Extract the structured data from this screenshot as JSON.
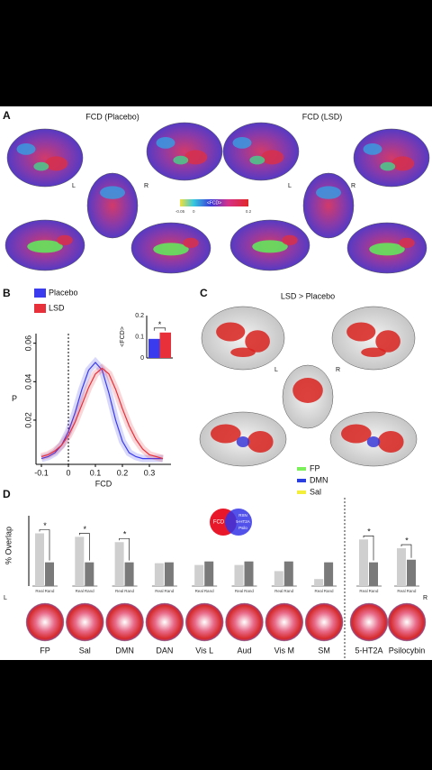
{
  "panel_a": {
    "label": "A",
    "title_left": "FCD (Placebo)",
    "title_right": "FCD (LSD)",
    "hemisphere_labels": [
      "L",
      "R",
      "L",
      "R"
    ],
    "colorbar": {
      "label": "<FCD>",
      "lim": [
        -0.05,
        0.2
      ],
      "ticks": [
        -0.05,
        0,
        0.2
      ]
    }
  },
  "panel_b": {
    "label": "B"
  },
  "panel_c": {
    "label": "C",
    "title": "LSD > Placebo",
    "hemisphere_labels": [
      "L",
      "R"
    ],
    "legend": [
      {
        "name": "FP",
        "color": "#7cf05a"
      },
      {
        "name": "DMN",
        "color": "#2b3fe0"
      },
      {
        "name": "Sal",
        "color": "#f2ee3a"
      }
    ]
  },
  "panel_d": {
    "label": "D",
    "venn": {
      "left": "FCD",
      "right": [
        "RSN",
        "5-HT2A",
        "Psilo"
      ]
    },
    "hemisphere_labels": [
      "L",
      "R"
    ]
  },
  "chart_data": [
    {
      "type": "line",
      "x_label": "FCD",
      "y_label": "P",
      "x": [
        -0.1,
        -0.075,
        -0.05,
        -0.025,
        0,
        0.025,
        0.05,
        0.075,
        0.1,
        0.125,
        0.15,
        0.175,
        0.2,
        0.225,
        0.25,
        0.275,
        0.3,
        0.325,
        0.35
      ],
      "series": [
        {
          "name": "Placebo",
          "color": "#3a3aef",
          "values": [
            0,
            0.001,
            0.003,
            0.007,
            0.014,
            0.024,
            0.036,
            0.046,
            0.05,
            0.046,
            0.034,
            0.02,
            0.009,
            0.003,
            0.001,
            0,
            0,
            0,
            0
          ]
        },
        {
          "name": "LSD",
          "color": "#e8303a",
          "values": [
            0.001,
            0.002,
            0.004,
            0.007,
            0.012,
            0.019,
            0.028,
            0.037,
            0.044,
            0.047,
            0.044,
            0.036,
            0.026,
            0.017,
            0.01,
            0.005,
            0.002,
            0.001,
            0
          ]
        }
      ],
      "xlim": [
        -0.12,
        0.38
      ],
      "xticks": [
        -0.1,
        0,
        0.1,
        0.2,
        0.3
      ],
      "ylim": [
        -0.003,
        0.065
      ],
      "yticks": [
        0.02,
        0.04,
        0.06
      ]
    },
    {
      "type": "bar",
      "y_label": "<FCD>",
      "categories": [
        "Placebo",
        "LSD"
      ],
      "values": [
        0.09,
        0.12
      ],
      "colors": [
        "#3a3aef",
        "#e8303a"
      ],
      "ylim": [
        0,
        0.2
      ],
      "yticks": [
        0,
        0.1,
        0.2
      ],
      "annotation": "*"
    },
    {
      "type": "bar",
      "y_label": "% Overlap",
      "categories": [
        "FP",
        "Sal",
        "DMN",
        "DAN",
        "Vis L",
        "Aud",
        "Vis M",
        "SM",
        "5-HT2A",
        "Psilocybin"
      ],
      "series": [
        {
          "name": "Real",
          "color": "#cfcfcf",
          "values": [
            60,
            56,
            50,
            26,
            24,
            24,
            17,
            8,
            53,
            43
          ]
        },
        {
          "name": "Rand",
          "color": "#7a7a7a",
          "values": [
            27,
            27,
            27,
            27,
            28,
            28,
            28,
            27,
            27,
            30
          ]
        }
      ],
      "ylim": [
        0,
        80
      ],
      "annotations": [
        {
          "category": 0,
          "text": "*"
        },
        {
          "category": 1,
          "text": "*"
        },
        {
          "category": 2,
          "text": "*"
        },
        {
          "category": 8,
          "text": "*"
        },
        {
          "category": 9,
          "text": "*"
        }
      ]
    }
  ]
}
